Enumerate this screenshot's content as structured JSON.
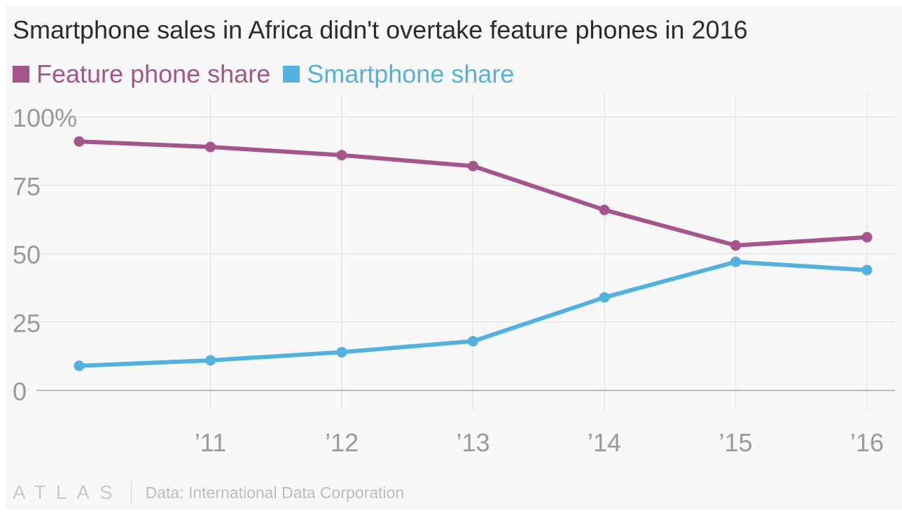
{
  "header": {
    "title": "Smartphone sales in Africa didn't overtake feature phones in 2016"
  },
  "legend": [
    {
      "label": "Feature phone share",
      "color": "#a5558b"
    },
    {
      "label": "Smartphone share",
      "color": "#51b2e0"
    }
  ],
  "footer": {
    "brand": "ATLAS",
    "source": "Data: International Data Corporation"
  },
  "chart_data": {
    "type": "line",
    "title": "Smartphone sales in Africa didn't overtake feature phones in 2016",
    "xlabel": "",
    "ylabel": "",
    "x": [
      2010,
      2011,
      2012,
      2013,
      2014,
      2015,
      2016
    ],
    "x_tick_values": [
      2011,
      2012,
      2013,
      2014,
      2015,
      2016
    ],
    "x_tick_labels": [
      "’11",
      "’12",
      "’13",
      "’14",
      "’15",
      "’16"
    ],
    "ylim": [
      0,
      100
    ],
    "y_ticks": [
      0,
      25,
      50,
      75,
      100
    ],
    "y_tick_labels": [
      "0",
      "25",
      "50",
      "75",
      "100%"
    ],
    "grid": true,
    "legend_position": "top-left",
    "series": [
      {
        "name": "Feature phone share",
        "color": "#a5558b",
        "values": [
          91,
          89,
          86,
          82,
          66,
          53,
          56
        ]
      },
      {
        "name": "Smartphone share",
        "color": "#51b2e0",
        "values": [
          9,
          11,
          14,
          18,
          34,
          47,
          44
        ]
      }
    ]
  }
}
